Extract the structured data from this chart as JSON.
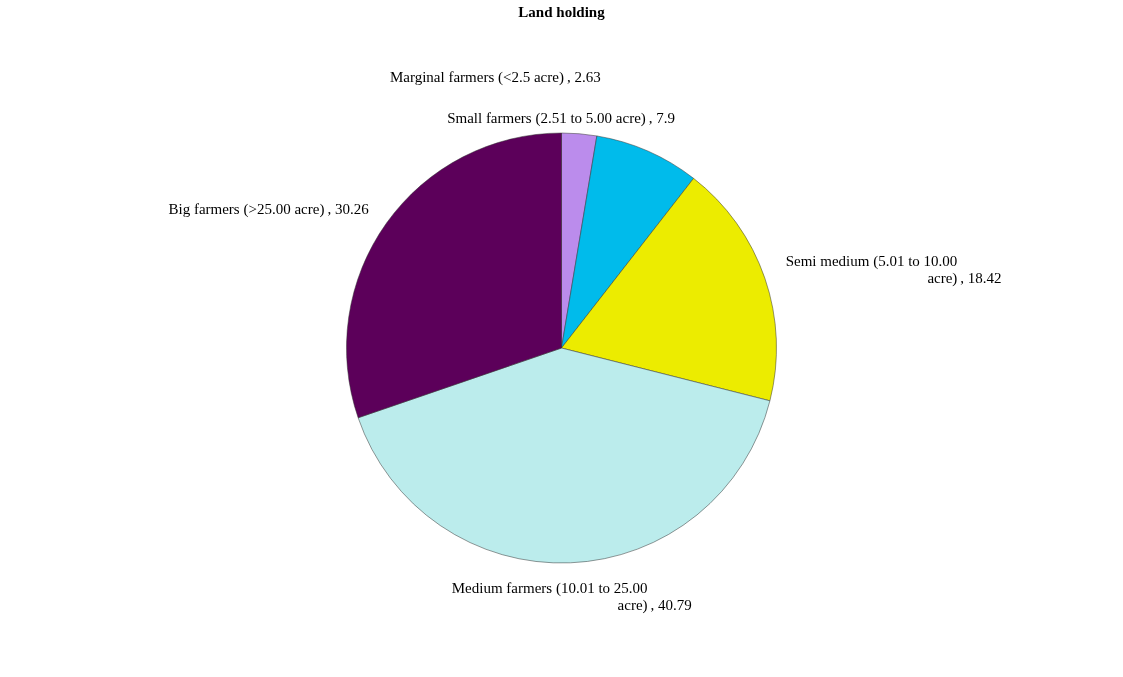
{
  "chart_data": {
    "type": "pie",
    "title": "Land holding",
    "categories": [
      "Marginal farmers (<2.5 acre)",
      "Small farmers (2.51 to 5.00 acre)",
      "Semi medium (5.01 to 10.00 acre)",
      "Medium farmers (10.01 to 25.00 acre)",
      "Big farmers (>25.00 acre)"
    ],
    "values": [
      2.63,
      7.9,
      18.42,
      40.79,
      30.26
    ],
    "value_labels": [
      ", 2.63",
      ", 7.9",
      ", 18.42",
      ", 40.79",
      ", 30.26"
    ],
    "colors": [
      "#bb8cec",
      "#00bbeb",
      "#ecec00",
      "#bbecec",
      "#5c005a"
    ]
  }
}
